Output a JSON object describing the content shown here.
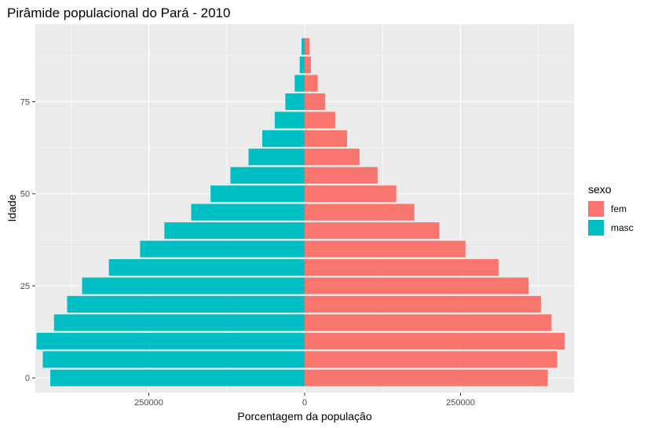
{
  "chart_data": {
    "type": "bar",
    "orientation": "horizontal",
    "title": "Pirâmide populacional do Pará - 2010",
    "xlabel": "Porcentagem da população",
    "ylabel": "Idade",
    "xlim": [
      -432000,
      432000
    ],
    "ylim": [
      -4,
      96
    ],
    "x_ticks": [
      {
        "value": -250000,
        "label": "250000"
      },
      {
        "value": 0,
        "label": "0"
      },
      {
        "value": 250000,
        "label": "250000"
      }
    ],
    "y_ticks": [
      {
        "value": 0,
        "label": "0"
      },
      {
        "value": 25,
        "label": "25"
      },
      {
        "value": 50,
        "label": "50"
      },
      {
        "value": 75,
        "label": "75"
      }
    ],
    "bar_width": 4.5,
    "categories": [
      0,
      5,
      10,
      15,
      20,
      25,
      30,
      35,
      40,
      45,
      50,
      55,
      60,
      65,
      70,
      75,
      80,
      85,
      90
    ],
    "series": [
      {
        "name": "fem",
        "color": "#F8766D",
        "values": [
          390000,
          405000,
          417000,
          396000,
          379000,
          359000,
          311000,
          258000,
          216000,
          176000,
          147000,
          117000,
          88000,
          68000,
          49000,
          33000,
          21000,
          10000,
          8000
        ]
      },
      {
        "name": "masc",
        "color": "#00BFC4",
        "values": [
          -408000,
          -420000,
          -430000,
          -402000,
          -381000,
          -357000,
          -314000,
          -264000,
          -225000,
          -182000,
          -151000,
          -119000,
          -90000,
          -68000,
          -48000,
          -31000,
          -16000,
          -8000,
          -5000
        ]
      }
    ],
    "legend": {
      "title": "sexo",
      "position": "right"
    },
    "grid": true,
    "panel_background": "#EBEBEB",
    "grid_color": "#FFFFFF"
  }
}
